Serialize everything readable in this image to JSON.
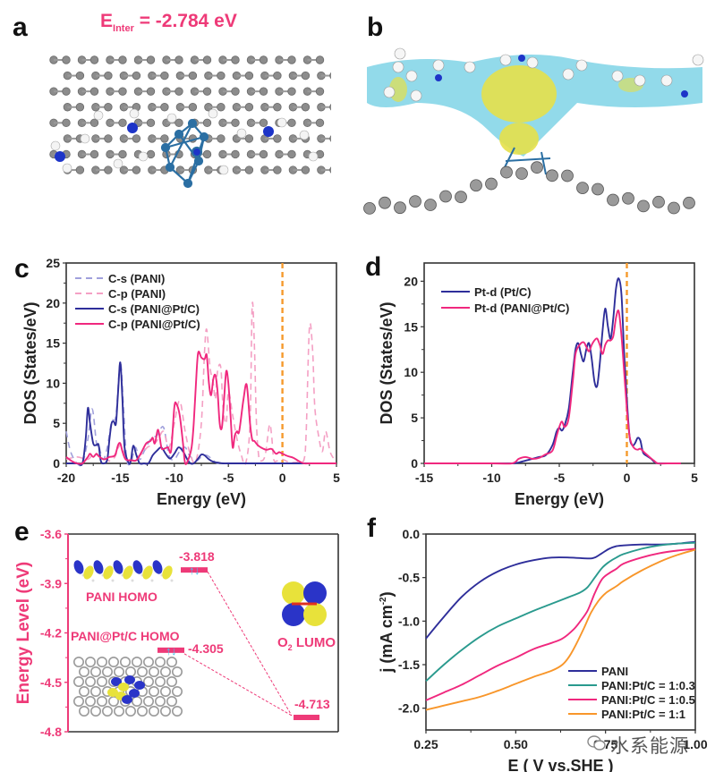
{
  "panels": {
    "a": {
      "label": "a",
      "einter_prefix": "E",
      "einter_sub": "Inter",
      "einter_value": "= -2.784 eV"
    },
    "b": {
      "label": "b"
    },
    "c": {
      "label": "c"
    },
    "d": {
      "label": "d"
    },
    "e": {
      "label": "e"
    },
    "f": {
      "label": "f"
    }
  },
  "colors": {
    "pink": "#ee3a78",
    "navy": "#2e2e9a",
    "teal": "#2a9a8e",
    "magenta": "#f0287e",
    "orange": "#f8962a",
    "fermi": "#f59a2c",
    "pink_dash": "#f4a0c4",
    "navy_dash": "#a0a0dc"
  },
  "watermark": {
    "text": "水系能源",
    "icon": "wechat-icon"
  },
  "chart_data": [
    {
      "id": "c",
      "type": "line",
      "title": "",
      "xlabel": "Energy (eV)",
      "ylabel": "DOS (States/eV)",
      "xlim": [
        -20,
        5
      ],
      "ylim": [
        0,
        25
      ],
      "xticks": [
        -20,
        -15,
        -10,
        -5,
        0,
        5
      ],
      "yticks": [
        0,
        5,
        10,
        15,
        20,
        25
      ],
      "legend_position": "top-left",
      "fermi_level": 0,
      "series": [
        {
          "name": "C-s (PANI)",
          "style": "dashed",
          "color": "#a0a0dc",
          "x": [
            -20,
            -19.6,
            -19,
            -18.5,
            -18,
            -17.6,
            -17.2,
            -17,
            -16.6,
            -16.2,
            -15.8,
            -15.4,
            -15.0,
            -14.7,
            -14.4,
            -14.0,
            -13.6,
            -13.2,
            -12.8,
            -12.2,
            -11.6,
            -11,
            -10.5,
            -10,
            -9.5,
            -9,
            -8.6,
            -8,
            -7.5,
            -7,
            -6.5,
            -6,
            -5,
            -4,
            0,
            5
          ],
          "y": [
            4,
            1.5,
            0,
            0,
            3,
            6.8,
            2.5,
            2.3,
            0.5,
            2,
            5.2,
            6,
            12.7,
            7,
            0.5,
            0.2,
            2,
            0.5,
            1.5,
            3,
            3.5,
            4.5,
            1,
            0.5,
            1.5,
            2,
            1,
            0.3,
            0.8,
            1,
            0.5,
            0,
            0,
            0,
            0,
            0
          ]
        },
        {
          "name": "C-p (PANI)",
          "style": "dashed",
          "color": "#f4a0c4",
          "x": [
            -20,
            -19,
            -18,
            -17.5,
            -17,
            -16.5,
            -16,
            -15.5,
            -15,
            -14.5,
            -14,
            -13,
            -12.5,
            -12,
            -11.5,
            -11,
            -10.5,
            -10,
            -9.5,
            -9,
            -8.5,
            -8,
            -7.5,
            -7.2,
            -7,
            -6.7,
            -6.4,
            -6.2,
            -6,
            -5.7,
            -5.5,
            -5.2,
            -5,
            -4.6,
            -4.2,
            -3.8,
            -3.4,
            -3,
            -2.8,
            -2.6,
            -2.4,
            -2.2,
            -2,
            -1.6,
            -1.2,
            -1,
            -0.8,
            -0.5,
            0,
            0.5,
            1,
            1.5,
            2,
            2.2,
            2.5,
            2.8,
            3,
            3.4,
            3.7,
            4,
            4.4,
            4.8,
            5
          ],
          "y": [
            0.5,
            0.8,
            0.5,
            1.2,
            1,
            0.8,
            0.3,
            0.8,
            2.3,
            0.8,
            0.3,
            1.2,
            2,
            2.3,
            3,
            4,
            2,
            5,
            7.8,
            4,
            1,
            0.3,
            5,
            14,
            16.7,
            12,
            10,
            8,
            11.5,
            12,
            7,
            5,
            9,
            6,
            3,
            1,
            0,
            5,
            19.7,
            15,
            5,
            1,
            0.3,
            1,
            4.8,
            3.5,
            0.5,
            0.3,
            0.5,
            0.2,
            0.1,
            0.2,
            0.5,
            4,
            17,
            14,
            7,
            3,
            1.5,
            4,
            1.5,
            0.5,
            0.3
          ]
        },
        {
          "name": "C-s (PANI@Pt/C)",
          "style": "solid",
          "color": "#2e2e9a",
          "x": [
            -20,
            -19,
            -18.5,
            -18.2,
            -18,
            -17.8,
            -17.5,
            -17.2,
            -17,
            -16.8,
            -16.5,
            -16.2,
            -16,
            -15.8,
            -15.6,
            -15.4,
            -15.2,
            -15,
            -14.8,
            -14.6,
            -14.2,
            -14,
            -13.8,
            -13.5,
            -13.2,
            -12.8,
            -12.4,
            -12,
            -11.6,
            -11.2,
            -10.8,
            -10.4,
            -10,
            -9.6,
            -9.2,
            -8.8,
            -8.5,
            -8.2,
            -7.8,
            -7.5,
            -7.2,
            -6.8,
            -6.4,
            -6,
            -5.5,
            -5,
            -4,
            0,
            5
          ],
          "y": [
            0,
            0,
            0,
            3,
            6.9,
            5,
            2.5,
            2.3,
            2.3,
            0.3,
            0,
            0.5,
            3,
            5,
            5.2,
            5,
            9,
            12.6,
            8,
            2,
            0,
            0.5,
            2.2,
            1,
            0,
            0,
            0,
            1,
            1.6,
            2,
            1.2,
            0.6,
            1.2,
            2,
            1.5,
            0.5,
            0,
            0,
            0.6,
            1.1,
            1,
            0.5,
            0.2,
            0.1,
            0,
            0,
            0,
            0,
            0
          ]
        },
        {
          "name": "C-p (PANI@Pt/C)",
          "style": "solid",
          "color": "#f0287e",
          "x": [
            -20,
            -19.5,
            -19,
            -18.5,
            -18,
            -17.8,
            -17.5,
            -17.2,
            -17,
            -16.5,
            -16,
            -15.5,
            -15.2,
            -15,
            -14.8,
            -14.5,
            -14,
            -13.5,
            -13,
            -12.6,
            -12.2,
            -12,
            -11.8,
            -11.5,
            -11.2,
            -11,
            -10.6,
            -10.3,
            -10,
            -9.8,
            -9.5,
            -9.2,
            -9,
            -8.7,
            -8.4,
            -8.2,
            -8,
            -7.8,
            -7.5,
            -7.2,
            -7,
            -6.8,
            -6.6,
            -6.4,
            -6.2,
            -6,
            -5.8,
            -5.6,
            -5.4,
            -5.2,
            -5,
            -4.8,
            -4.6,
            -4.4,
            -4.2,
            -4,
            -3.6,
            -3.3,
            -3,
            -2.8,
            -2.6,
            -2.3,
            -2,
            -1.5,
            -1,
            -0.6,
            -0.3,
            0,
            0.5,
            1,
            1.5,
            2,
            2.5,
            5
          ],
          "y": [
            0.8,
            0.3,
            0,
            0,
            0.8,
            1.2,
            0.8,
            1.2,
            0.9,
            0.5,
            0.8,
            1,
            2.3,
            2.5,
            1.5,
            0.5,
            0.4,
            0.4,
            1.5,
            2.5,
            2.8,
            3.2,
            2.5,
            4.2,
            2,
            1.8,
            2,
            1.6,
            7,
            7.4,
            6,
            2.5,
            0,
            0.5,
            2,
            5,
            10,
            13.8,
            13.2,
            13,
            13.5,
            10,
            8.5,
            10.5,
            11,
            9,
            5,
            4.5,
            8,
            11.5,
            10,
            6,
            2,
            3.5,
            4,
            4,
            8,
            9.8,
            5,
            3,
            2.8,
            2.3,
            2,
            1.7,
            1.8,
            1.2,
            1.4,
            1.2,
            0.9,
            0.7,
            0.3,
            0,
            0,
            0
          ]
        }
      ]
    },
    {
      "id": "d",
      "type": "line",
      "title": "",
      "xlabel": "Energy (eV)",
      "ylabel": "DOS (States/eV)",
      "xlim": [
        -15,
        5
      ],
      "ylim": [
        0,
        22
      ],
      "xticks": [
        -15,
        -10,
        -5,
        0,
        5
      ],
      "yticks": [
        0,
        5,
        10,
        15,
        20
      ],
      "legend_position": "top-left",
      "fermi_level": 0,
      "series": [
        {
          "name": "Pt-d (Pt/C)",
          "style": "solid",
          "color": "#2e2e9a",
          "x": [
            -15,
            -10,
            -8.5,
            -8,
            -7.5,
            -7,
            -6.5,
            -6,
            -5.5,
            -5.2,
            -5,
            -4.8,
            -4.6,
            -4.3,
            -4,
            -3.8,
            -3.6,
            -3.4,
            -3.2,
            -3,
            -2.8,
            -2.6,
            -2.4,
            -2.2,
            -2,
            -1.8,
            -1.6,
            -1.4,
            -1.2,
            -1,
            -0.8,
            -0.6,
            -0.4,
            -0.2,
            0,
            0.2,
            0.4,
            0.6,
            0.8,
            1,
            1.2,
            1.5,
            1.8,
            2,
            2.3,
            3,
            4
          ],
          "y": [
            0,
            0,
            0,
            0.1,
            0.3,
            0.5,
            0.7,
            0.9,
            2,
            3.5,
            3.9,
            3.6,
            4.2,
            6,
            10,
            12.5,
            13.2,
            12,
            11.2,
            12.5,
            13.2,
            11.5,
            9,
            8.5,
            11,
            14.5,
            17,
            15,
            13.7,
            16,
            19.2,
            20.3,
            18.5,
            12,
            7,
            3,
            2,
            2.2,
            2.8,
            2.5,
            1.2,
            0.8,
            0.5,
            0.2,
            0,
            0,
            0
          ]
        },
        {
          "name": "Pt-d (PANI@Pt/C)",
          "style": "solid",
          "color": "#f0287e",
          "x": [
            -15,
            -10,
            -8.5,
            -8,
            -7.5,
            -7,
            -6.5,
            -6,
            -5.5,
            -5.2,
            -5,
            -4.8,
            -4.6,
            -4.3,
            -4,
            -3.8,
            -3.5,
            -3.2,
            -3,
            -2.8,
            -2.6,
            -2.4,
            -2.2,
            -2,
            -1.8,
            -1.6,
            -1.4,
            -1.2,
            -1,
            -0.8,
            -0.6,
            -0.4,
            -0.2,
            0,
            0.2,
            0.4,
            0.6,
            0.8,
            1,
            1.3,
            1.6,
            2,
            2.3,
            3,
            4
          ],
          "y": [
            0,
            0,
            0,
            0.5,
            0.7,
            0.5,
            0.6,
            1,
            1.4,
            3,
            4,
            4.6,
            4,
            5,
            9,
            12,
            13,
            13.3,
            12.8,
            12.3,
            13,
            13.5,
            13.7,
            13,
            12,
            13,
            13.5,
            13.5,
            14,
            16,
            16.7,
            14,
            10,
            6,
            3,
            2,
            1.6,
            1.5,
            1.6,
            1.2,
            0.8,
            0.3,
            0,
            0,
            0
          ]
        }
      ]
    },
    {
      "id": "e",
      "type": "scatter",
      "title": "",
      "xlabel": "",
      "ylabel": "Energy Level (eV)",
      "ylim": [
        -4.8,
        -3.6
      ],
      "yticks": [
        -3.6,
        -3.9,
        -4.2,
        -4.5,
        -4.8
      ],
      "levels": [
        {
          "name": "PANI HOMO",
          "value": -3.818,
          "label": "-3.818",
          "electrons": "↑↓"
        },
        {
          "name": "PANI@Pt/C HOMO",
          "value": -4.305,
          "label": "-4.305",
          "electrons": "↑↓"
        },
        {
          "name": "O2 LUMO",
          "value": -4.713,
          "label": "-4.713"
        }
      ],
      "annotations": [
        "PANI HOMO",
        "PANI@Pt/C HOMO",
        "O2 LUMO"
      ],
      "o2_label_main": "O",
      "o2_label_sub": "2",
      "o2_label_rest": " LUMO"
    },
    {
      "id": "f",
      "type": "line",
      "title": "",
      "xlabel": "E ( V vs.SHE )",
      "ylabel": "j (mA cm⁻²)",
      "xlim": [
        0.25,
        1.0
      ],
      "ylim": [
        -2.25,
        0.0
      ],
      "xticks": [
        0.25,
        0.5,
        0.75,
        1.0
      ],
      "xtick_labels": [
        "0.25",
        "0.50",
        "0.75",
        "1.00"
      ],
      "yticks": [
        0.0,
        -0.5,
        -1.0,
        -1.5,
        -2.0
      ],
      "ytick_labels": [
        "0.0",
        "-0.5",
        "-1.0",
        "-1.5",
        "-2.0"
      ],
      "legend_position": "bottom-right",
      "series": [
        {
          "name": "PANI",
          "color": "#2e2e9a",
          "x": [
            0.25,
            0.3,
            0.35,
            0.4,
            0.45,
            0.5,
            0.55,
            0.6,
            0.65,
            0.7,
            0.72,
            0.74,
            0.76,
            0.78,
            0.8,
            0.85,
            0.9,
            0.95,
            1.0
          ],
          "y": [
            -1.2,
            -0.95,
            -0.72,
            -0.55,
            -0.43,
            -0.35,
            -0.3,
            -0.27,
            -0.27,
            -0.28,
            -0.27,
            -0.22,
            -0.17,
            -0.14,
            -0.13,
            -0.12,
            -0.12,
            -0.11,
            -0.09
          ]
        },
        {
          "name": "PANI:Pt/C = 1:0.3",
          "color": "#2a9a8e",
          "x": [
            0.25,
            0.3,
            0.35,
            0.4,
            0.45,
            0.5,
            0.55,
            0.6,
            0.65,
            0.68,
            0.7,
            0.72,
            0.74,
            0.76,
            0.78,
            0.8,
            0.85,
            0.9,
            0.95,
            1.0
          ],
          "y": [
            -1.69,
            -1.5,
            -1.33,
            -1.18,
            -1.06,
            -0.97,
            -0.88,
            -0.8,
            -0.72,
            -0.67,
            -0.61,
            -0.5,
            -0.39,
            -0.32,
            -0.27,
            -0.23,
            -0.17,
            -0.13,
            -0.11,
            -0.1
          ]
        },
        {
          "name": "PANI:Pt/C = 1:0.5",
          "color": "#f0287e",
          "x": [
            0.25,
            0.3,
            0.35,
            0.4,
            0.45,
            0.5,
            0.55,
            0.6,
            0.63,
            0.66,
            0.68,
            0.7,
            0.72,
            0.74,
            0.76,
            0.78,
            0.8,
            0.85,
            0.9,
            0.95,
            1.0
          ],
          "y": [
            -1.91,
            -1.82,
            -1.73,
            -1.62,
            -1.51,
            -1.42,
            -1.32,
            -1.25,
            -1.2,
            -1.1,
            -1.0,
            -0.88,
            -0.68,
            -0.52,
            -0.45,
            -0.4,
            -0.34,
            -0.27,
            -0.22,
            -0.19,
            -0.17
          ]
        },
        {
          "name": "PANI:Pt/C = 1:1",
          "color": "#f8962a",
          "x": [
            0.25,
            0.3,
            0.35,
            0.4,
            0.45,
            0.5,
            0.55,
            0.6,
            0.63,
            0.65,
            0.67,
            0.69,
            0.71,
            0.73,
            0.75,
            0.78,
            0.8,
            0.85,
            0.9,
            0.95,
            1.0
          ],
          "y": [
            -2.02,
            -1.97,
            -1.92,
            -1.87,
            -1.8,
            -1.72,
            -1.64,
            -1.57,
            -1.5,
            -1.4,
            -1.25,
            -1.08,
            -0.9,
            -0.77,
            -0.68,
            -0.6,
            -0.54,
            -0.42,
            -0.32,
            -0.24,
            -0.18
          ]
        }
      ]
    }
  ]
}
